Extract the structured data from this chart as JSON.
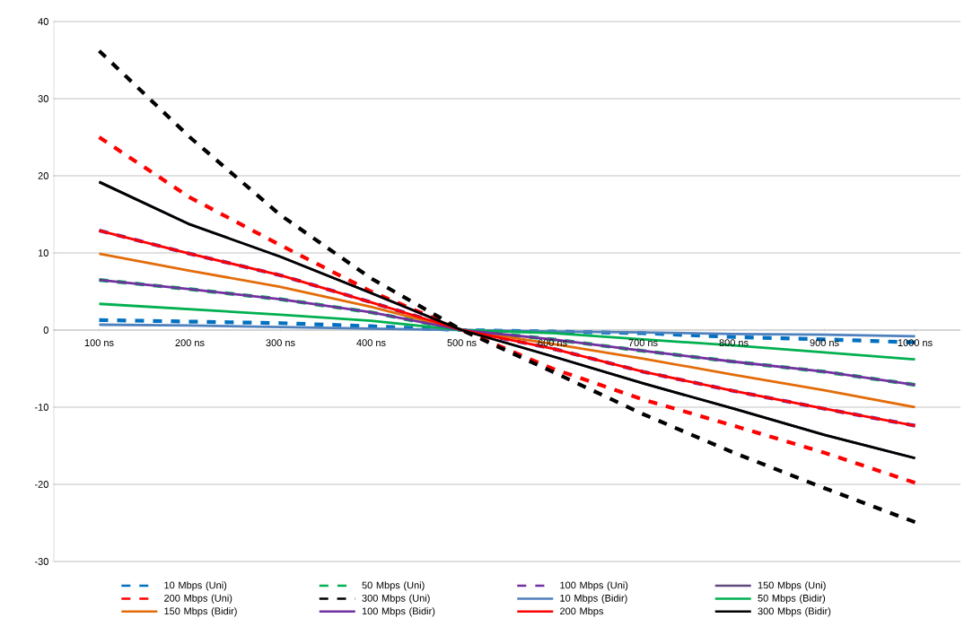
{
  "chart_data": {
    "type": "line",
    "categories": [
      "100 ns",
      "200 ns",
      "300 ns",
      "400 ns",
      "500 ns",
      "600 ns",
      "700 ns",
      "800 ns",
      "900 ns",
      "1000 ns"
    ],
    "ylim": [
      -30,
      40
    ],
    "yticks": [
      -30,
      -20,
      -10,
      0,
      10,
      20,
      30,
      40
    ],
    "grid": "y",
    "legend": "bottom",
    "marker": "none",
    "series": [
      {
        "name": "10 Mbps (Uni)",
        "color": "#0070c0",
        "line_style": "dashed",
        "values": [
          1.3,
          1.1,
          0.9,
          0.5,
          0,
          -0.2,
          -0.4,
          -0.9,
          -1.2,
          -1.6
        ]
      },
      {
        "name": "50 Mbps (Uni)",
        "color": "#00b050",
        "line_style": "dashed",
        "values": [
          6.5,
          5.3,
          4.0,
          2.3,
          0,
          -1.2,
          -2.7,
          -4.1,
          -5.4,
          -7.1
        ]
      },
      {
        "name": "100 Mbps (Uni)",
        "color": "#7030a0",
        "line_style": "dashed",
        "values": [
          12.9,
          9.9,
          7.1,
          3.6,
          0,
          -2.4,
          -5.4,
          -7.9,
          -10.2,
          -12.4
        ]
      },
      {
        "name": "150 Mbps (Uni)",
        "color": "#604a7b",
        "line_style": "solid",
        "values": [
          19.2,
          13.7,
          9.5,
          4.8,
          0,
          -3.4,
          -6.9,
          -10.2,
          -13.6,
          -16.6
        ]
      },
      {
        "name": "200 Mbps (Uni)",
        "color": "#ff0000",
        "line_style": "dashed",
        "values": [
          25.0,
          17.2,
          11.0,
          5.0,
          0,
          -5.0,
          -9.0,
          -12.4,
          -15.9,
          -19.8
        ]
      },
      {
        "name": "300 Mbps (Uni)",
        "color": "#000000",
        "line_style": "dashed",
        "values": [
          36.2,
          25.0,
          14.9,
          6.7,
          0,
          -5.4,
          -10.9,
          -15.9,
          -20.5,
          -24.9
        ]
      },
      {
        "name": "10 Mbps (Bidir)",
        "color": "#4f81bd",
        "line_style": "solid",
        "values": [
          0.7,
          0.6,
          0.4,
          0.2,
          0,
          -0.2,
          -0.3,
          -0.5,
          -0.6,
          -0.8
        ]
      },
      {
        "name": "50 Mbps (Bidir)",
        "color": "#00b050",
        "line_style": "solid",
        "values": [
          3.4,
          2.7,
          2.0,
          1.2,
          0,
          -0.4,
          -1.2,
          -2.0,
          -2.9,
          -3.8
        ]
      },
      {
        "name": "150 Mbps (Bidir)",
        "color": "#e36c09",
        "line_style": "solid",
        "values": [
          9.9,
          7.7,
          5.6,
          3.0,
          0,
          -1.8,
          -3.7,
          -5.8,
          -7.8,
          -10.0
        ]
      },
      {
        "name": "100 Mbps (Bidir)",
        "color": "#7030a0",
        "line_style": "solid",
        "values": [
          6.5,
          5.3,
          4.0,
          2.3,
          0,
          -1.2,
          -2.7,
          -4.1,
          -5.4,
          -7.1
        ]
      },
      {
        "name": "200 Mbps",
        "color": "#ff0000",
        "line_style": "solid",
        "values": [
          12.9,
          9.9,
          7.1,
          3.6,
          0,
          -2.4,
          -5.4,
          -7.9,
          -10.2,
          -12.4
        ]
      },
      {
        "name": "300 Mbps (Bidir)",
        "color": "#000000",
        "line_style": "solid",
        "values": [
          19.2,
          13.7,
          9.5,
          4.8,
          0,
          -3.4,
          -6.9,
          -10.2,
          -13.6,
          -16.6
        ]
      }
    ]
  }
}
